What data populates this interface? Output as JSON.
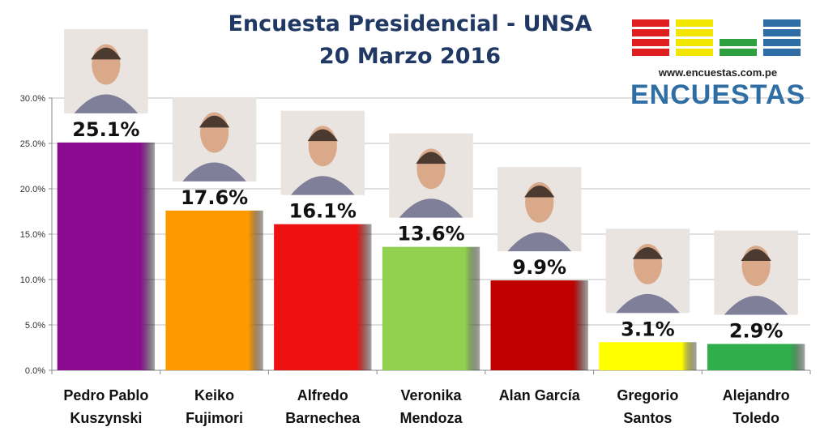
{
  "header": {
    "title_line1": "Encuesta Presidencial - UNSA",
    "title_line2": "20 Marzo 2016"
  },
  "logo": {
    "url_text": "www.encuestas.com.pe",
    "word": "ENCUESTAS",
    "bar_colors": [
      "#e02020",
      "#f2e600",
      "#2ea040",
      "#2e6ea4"
    ]
  },
  "chart_data": {
    "type": "bar",
    "title": "Encuesta Presidencial - UNSA",
    "subtitle": "20 Marzo 2016",
    "categories": [
      [
        "Pedro Pablo",
        "Kuszynski"
      ],
      [
        "Keiko",
        "Fujimori"
      ],
      [
        "Alfredo",
        "Barnechea"
      ],
      [
        "Veronika",
        "Mendoza"
      ],
      [
        "Alan García"
      ],
      [
        "Gregorio",
        "Santos"
      ],
      [
        "Alejandro",
        "Toledo"
      ]
    ],
    "values": [
      25.1,
      17.6,
      16.1,
      13.6,
      9.9,
      3.1,
      2.9
    ],
    "value_labels": [
      "25.1%",
      "17.6%",
      "16.1%",
      "13.6%",
      "9.9%",
      "3.1%",
      "2.9%"
    ],
    "colors": [
      "#8b0a8f",
      "#ff9900",
      "#ee1111",
      "#92d050",
      "#c00000",
      "#ffff00",
      "#2fae4c"
    ],
    "photo_icons": [
      "candidate-photo",
      "candidate-photo",
      "candidate-photo",
      "candidate-photo",
      "candidate-photo",
      "candidate-photo",
      "candidate-photo"
    ],
    "ylim": [
      0,
      30
    ],
    "yticks": [
      "0.0%",
      "5.0%",
      "10.0%",
      "15.0%",
      "20.0%",
      "25.0%",
      "30.0%"
    ],
    "grid": true,
    "xlabel": "",
    "ylabel": ""
  }
}
